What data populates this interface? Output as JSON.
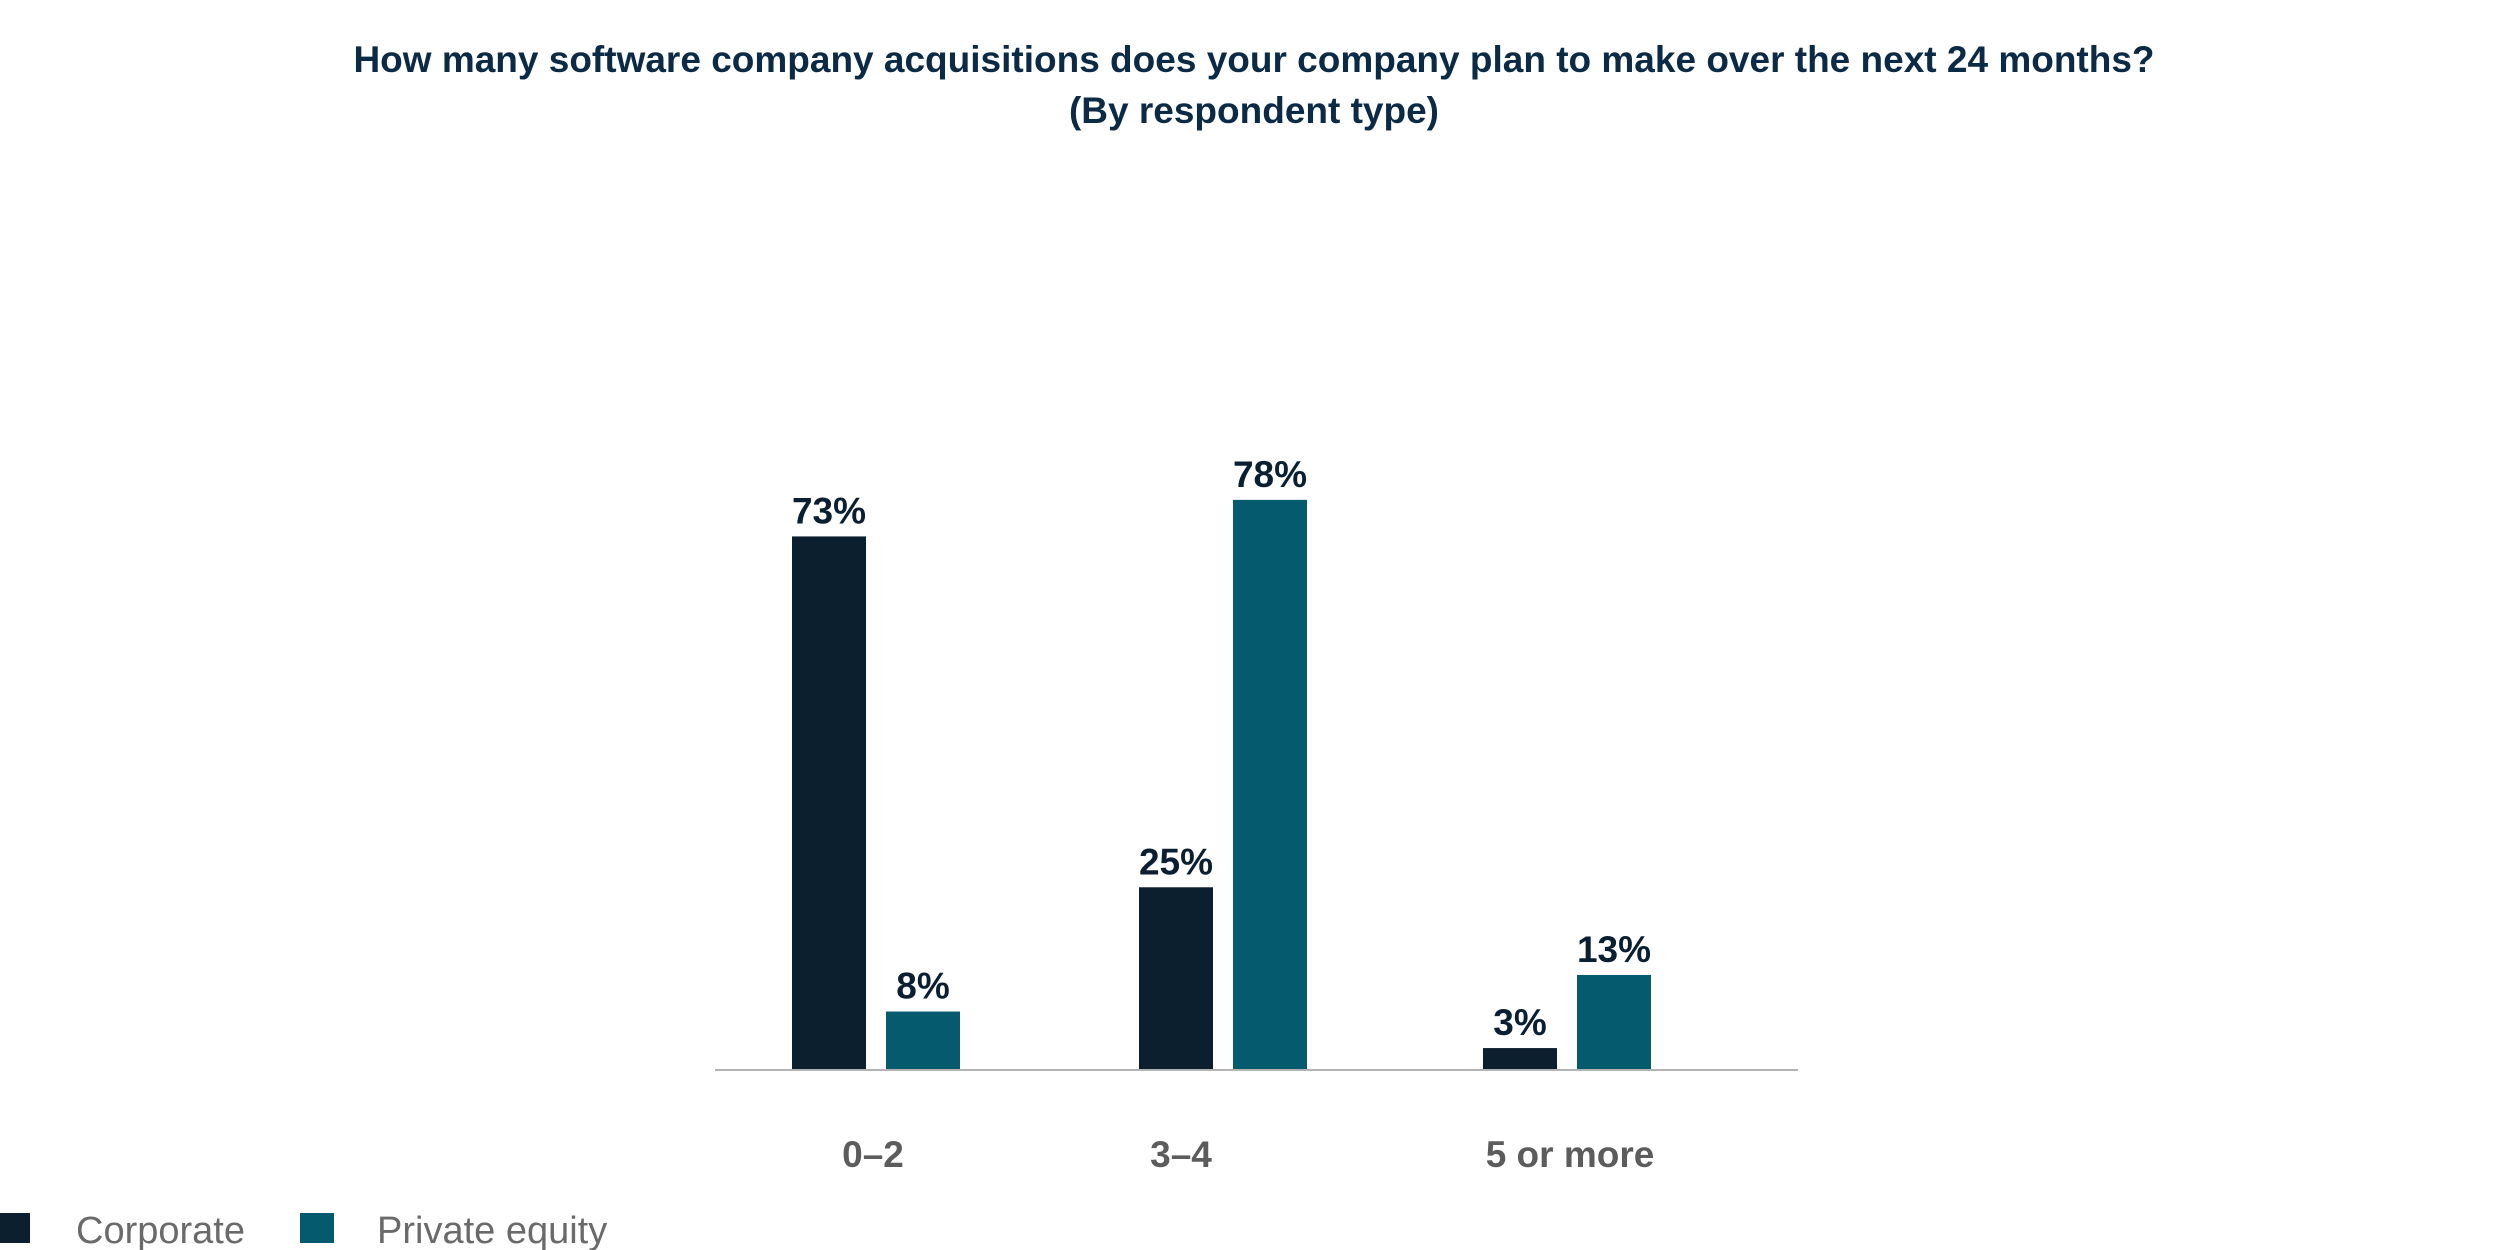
{
  "chart_data": {
    "type": "bar",
    "title": "How many software company acquisitions does your company plan to make over the next 24 months?",
    "subtitle": "(By respondent type)",
    "categories": [
      "0–2",
      "3–4",
      "5 or more"
    ],
    "series": [
      {
        "name": "Corporate",
        "values": [
          73,
          25,
          3
        ],
        "color": "#0b1f2e"
      },
      {
        "name": "Private equity",
        "values": [
          8,
          78,
          13
        ],
        "color": "#065a6e"
      }
    ],
    "value_suffix": "%",
    "xlabel": "",
    "ylabel": "",
    "ylim": [
      0,
      100
    ],
    "grid": false,
    "legend_position": "bottom-left",
    "axis_color": "#b3b3b3"
  }
}
